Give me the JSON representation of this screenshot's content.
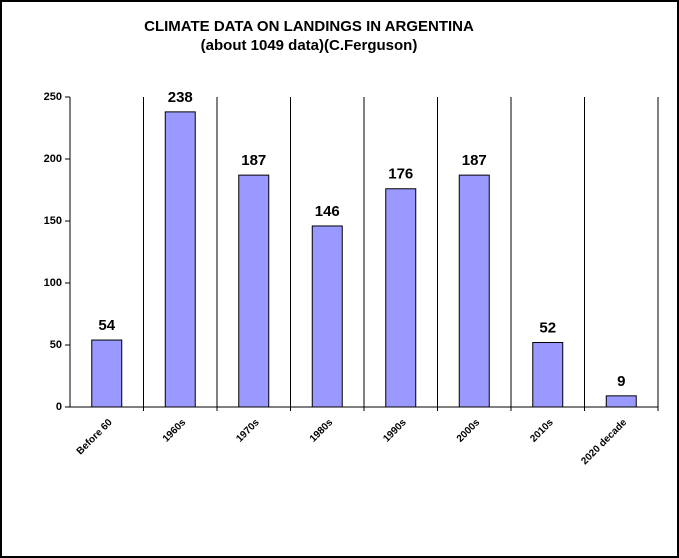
{
  "chart_data": {
    "type": "bar",
    "title": "CLIMATE DATA ON LANDINGS IN ARGENTINA",
    "subtitle": "(about 1049 data)(C.Ferguson)",
    "categories": [
      "Before 60",
      "1960s",
      "1970s",
      "1980s",
      "1990s",
      "2000s",
      "2010s",
      "2020 decade"
    ],
    "values": [
      54,
      238,
      187,
      146,
      176,
      187,
      52,
      9
    ],
    "color": "#9999ff",
    "ylim": [
      0,
      250
    ],
    "yticks": [
      0,
      50,
      100,
      150,
      200,
      250
    ],
    "category_dividers": true
  }
}
